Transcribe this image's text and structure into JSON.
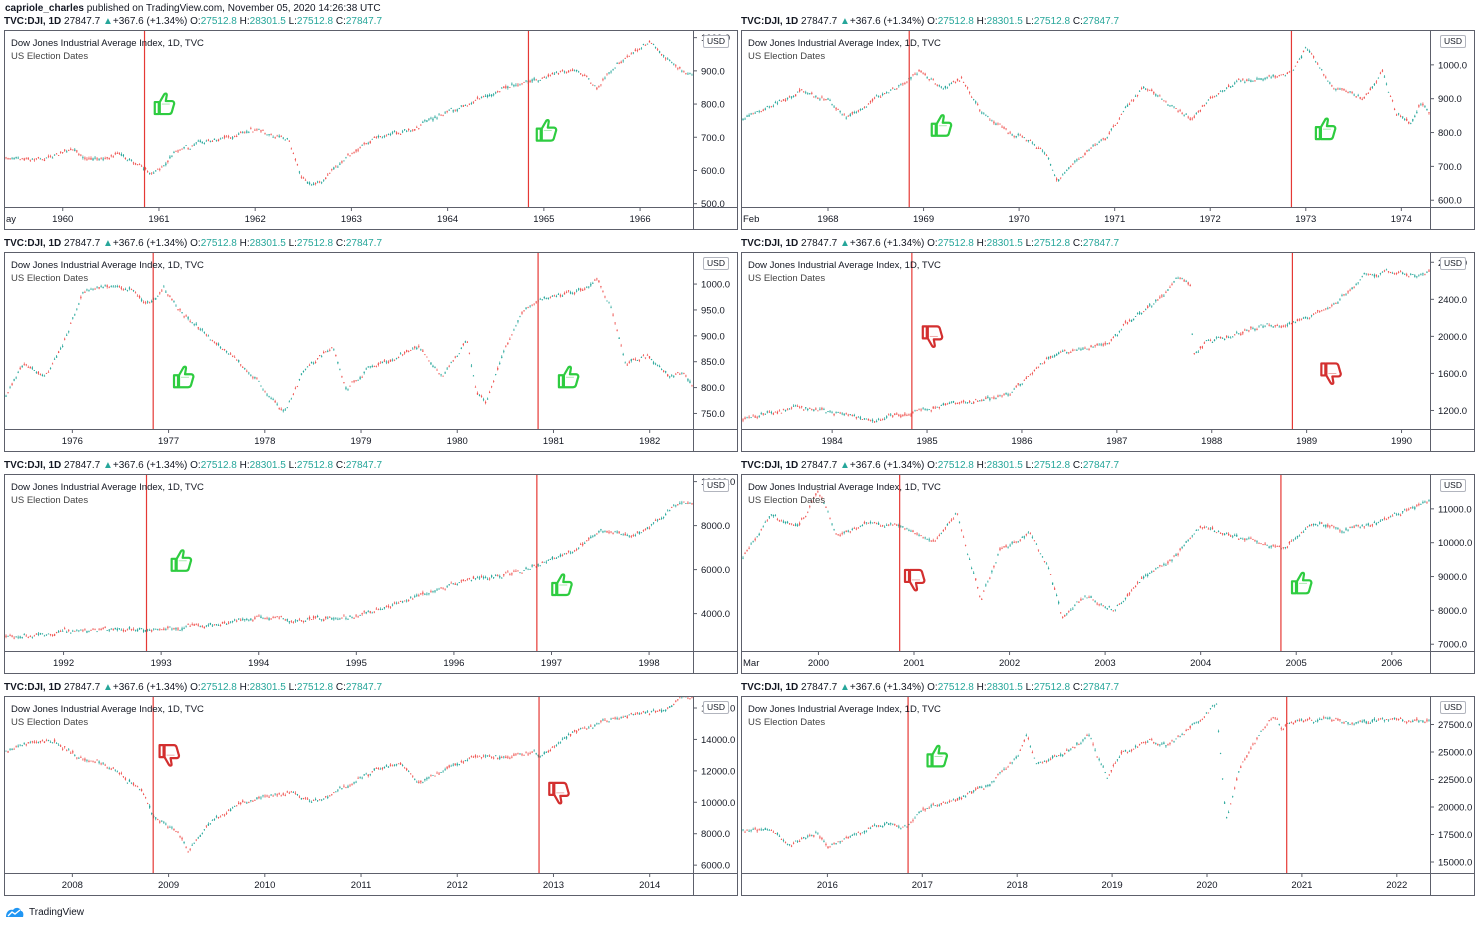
{
  "publisher": {
    "author": "capriole_charles",
    "text": "published on TradingView.com, November 05, 2020 14:26:38 UTC"
  },
  "ticker": {
    "symbol": "TVC:DJI, 1D",
    "last": "27847.7",
    "arrow": "▲",
    "change": "+367.6 (+1.34%)",
    "o_label": "O:",
    "o": "27512.8",
    "h_label": "H:",
    "h": "28301.5",
    "l_label": "L:",
    "l": "27512.8",
    "c_label": "C:",
    "c": "27847.7"
  },
  "legend": {
    "title": "Dow Jones Industrial Average Index, 1D, TVC",
    "subtitle": "US Election Dates"
  },
  "currency": "USD",
  "footer": {
    "brand": "TradingView"
  },
  "colors": {
    "candle_up": "#26a69a",
    "candle_down": "#ef5350",
    "election_line": "#e53935",
    "thumb_up": "#2ecc40",
    "thumb_down": "#d32f2f"
  },
  "chart_data": [
    {
      "type": "candlestick",
      "x_start_label": "ay",
      "x_ticks": [
        "1960",
        "1961",
        "1962",
        "1963",
        "1964",
        "1965",
        "1966"
      ],
      "x_range": [
        1959.4,
        1966.55
      ],
      "y_ticks": [
        "1000.0",
        "900.0",
        "800.0",
        "700.0",
        "600.0",
        "500.0"
      ],
      "ylim": [
        490,
        1020
      ],
      "series": [
        [
          1959.4,
          640
        ],
        [
          1959.8,
          635
        ],
        [
          1960.1,
          660
        ],
        [
          1960.3,
          630
        ],
        [
          1960.6,
          650
        ],
        [
          1960.8,
          610
        ],
        [
          1960.95,
          590
        ],
        [
          1961.2,
          660
        ],
        [
          1961.5,
          690
        ],
        [
          1961.8,
          700
        ],
        [
          1961.95,
          725
        ],
        [
          1962.2,
          705
        ],
        [
          1962.35,
          690
        ],
        [
          1962.48,
          580
        ],
        [
          1962.6,
          560
        ],
        [
          1962.75,
          580
        ],
        [
          1962.9,
          630
        ],
        [
          1963.1,
          670
        ],
        [
          1963.3,
          705
        ],
        [
          1963.6,
          720
        ],
        [
          1963.85,
          755
        ],
        [
          1964.1,
          785
        ],
        [
          1964.4,
          825
        ],
        [
          1964.7,
          860
        ],
        [
          1964.95,
          875
        ],
        [
          1965.2,
          900
        ],
        [
          1965.4,
          895
        ],
        [
          1965.55,
          850
        ],
        [
          1965.75,
          920
        ],
        [
          1965.95,
          960
        ],
        [
          1966.1,
          990
        ],
        [
          1966.25,
          945
        ],
        [
          1966.35,
          920
        ],
        [
          1966.5,
          885
        ]
      ],
      "elections": [
        1960.85,
        1964.84
      ],
      "signals": [
        {
          "x": 1961.05,
          "y": 800,
          "kind": "up"
        },
        {
          "x": 1965.02,
          "y": 720,
          "kind": "up"
        }
      ]
    },
    {
      "type": "candlestick",
      "x_start_label": "Feb",
      "x_ticks": [
        "1968",
        "1969",
        "1970",
        "1971",
        "1972",
        "1973",
        "1974"
      ],
      "x_range": [
        1967.1,
        1974.3
      ],
      "y_ticks": [
        "1000.0",
        "900.0",
        "800.0",
        "700.0",
        "600.0"
      ],
      "ylim": [
        580,
        1100
      ],
      "series": [
        [
          1967.1,
          840
        ],
        [
          1967.4,
          880
        ],
        [
          1967.7,
          920
        ],
        [
          1968.0,
          900
        ],
        [
          1968.2,
          840
        ],
        [
          1968.5,
          900
        ],
        [
          1968.8,
          950
        ],
        [
          1968.95,
          980
        ],
        [
          1969.2,
          930
        ],
        [
          1969.4,
          960
        ],
        [
          1969.6,
          860
        ],
        [
          1969.9,
          800
        ],
        [
          1970.1,
          780
        ],
        [
          1970.3,
          730
        ],
        [
          1970.4,
          650
        ],
        [
          1970.6,
          720
        ],
        [
          1970.9,
          780
        ],
        [
          1971.1,
          860
        ],
        [
          1971.3,
          940
        ],
        [
          1971.6,
          880
        ],
        [
          1971.8,
          840
        ],
        [
          1972.0,
          900
        ],
        [
          1972.3,
          950
        ],
        [
          1972.6,
          960
        ],
        [
          1972.85,
          980
        ],
        [
          1973.0,
          1050
        ],
        [
          1973.1,
          1010
        ],
        [
          1973.3,
          930
        ],
        [
          1973.6,
          900
        ],
        [
          1973.8,
          980
        ],
        [
          1973.95,
          850
        ],
        [
          1974.1,
          830
        ],
        [
          1974.2,
          890
        ],
        [
          1974.3,
          860
        ]
      ],
      "elections": [
        1968.85,
        1972.85
      ],
      "signals": [
        {
          "x": 1969.18,
          "y": 820,
          "kind": "up"
        },
        {
          "x": 1973.2,
          "y": 810,
          "kind": "up"
        }
      ]
    },
    {
      "type": "candlestick",
      "x_start_label": "",
      "x_ticks": [
        "1976",
        "1977",
        "1978",
        "1979",
        "1980",
        "1981",
        "1982"
      ],
      "x_range": [
        1975.3,
        1982.45
      ],
      "y_ticks": [
        "1000.0",
        "950.0",
        "900.0",
        "850.0",
        "800.0",
        "750.0"
      ],
      "ylim": [
        720,
        1060
      ],
      "series": [
        [
          1975.3,
          780
        ],
        [
          1975.5,
          850
        ],
        [
          1975.7,
          820
        ],
        [
          1975.9,
          880
        ],
        [
          1976.1,
          980
        ],
        [
          1976.3,
          1000
        ],
        [
          1976.6,
          990
        ],
        [
          1976.8,
          960
        ],
        [
          1976.95,
          990
        ],
        [
          1977.1,
          950
        ],
        [
          1977.3,
          920
        ],
        [
          1977.6,
          870
        ],
        [
          1977.9,
          820
        ],
        [
          1978.1,
          770
        ],
        [
          1978.2,
          750
        ],
        [
          1978.4,
          830
        ],
        [
          1978.7,
          880
        ],
        [
          1978.85,
          800
        ],
        [
          1979.1,
          840
        ],
        [
          1979.3,
          850
        ],
        [
          1979.6,
          880
        ],
        [
          1979.85,
          820
        ],
        [
          1980.1,
          890
        ],
        [
          1980.2,
          790
        ],
        [
          1980.3,
          770
        ],
        [
          1980.5,
          880
        ],
        [
          1980.7,
          950
        ],
        [
          1980.85,
          970
        ],
        [
          1981.1,
          980
        ],
        [
          1981.3,
          990
        ],
        [
          1981.45,
          1010
        ],
        [
          1981.6,
          950
        ],
        [
          1981.75,
          850
        ],
        [
          1982.0,
          860
        ],
        [
          1982.2,
          820
        ],
        [
          1982.35,
          830
        ],
        [
          1982.45,
          800
        ]
      ],
      "elections": [
        1976.84,
        1980.84
      ],
      "signals": [
        {
          "x": 1977.15,
          "y": 820,
          "kind": "up"
        },
        {
          "x": 1981.15,
          "y": 820,
          "kind": "up"
        }
      ]
    },
    {
      "type": "candlestick",
      "x_start_label": "",
      "x_ticks": [
        "1984",
        "1985",
        "1986",
        "1987",
        "1988",
        "1989",
        "1990"
      ],
      "x_range": [
        1983.05,
        1990.3
      ],
      "y_ticks": [
        "2800.0",
        "2400.0",
        "2000.0",
        "1600.0",
        "1200.0"
      ],
      "ylim": [
        1000,
        2900
      ],
      "series": [
        [
          1983.05,
          1100
        ],
        [
          1983.3,
          1170
        ],
        [
          1983.6,
          1220
        ],
        [
          1983.9,
          1200
        ],
        [
          1984.2,
          1140
        ],
        [
          1984.5,
          1100
        ],
        [
          1984.8,
          1180
        ],
        [
          1985.0,
          1220
        ],
        [
          1985.3,
          1280
        ],
        [
          1985.6,
          1310
        ],
        [
          1985.9,
          1400
        ],
        [
          1986.1,
          1600
        ],
        [
          1986.3,
          1800
        ],
        [
          1986.6,
          1850
        ],
        [
          1986.9,
          1920
        ],
        [
          1987.1,
          2150
        ],
        [
          1987.4,
          2350
        ],
        [
          1987.65,
          2640
        ],
        [
          1987.78,
          2550
        ],
        [
          1987.8,
          1800
        ],
        [
          1987.95,
          1950
        ],
        [
          1988.2,
          2000
        ],
        [
          1988.5,
          2100
        ],
        [
          1988.8,
          2130
        ],
        [
          1989.0,
          2180
        ],
        [
          1989.3,
          2350
        ],
        [
          1989.6,
          2650
        ],
        [
          1989.85,
          2700
        ],
        [
          1990.0,
          2700
        ],
        [
          1990.15,
          2640
        ],
        [
          1990.3,
          2720
        ]
      ],
      "elections": [
        1984.84,
        1988.85
      ],
      "signals": [
        {
          "x": 1985.05,
          "y": 2000,
          "kind": "down"
        },
        {
          "x": 1989.25,
          "y": 1600,
          "kind": "down"
        }
      ]
    },
    {
      "type": "candlestick",
      "x_start_label": "",
      "x_ticks": [
        "1992",
        "1993",
        "1994",
        "1995",
        "1996",
        "1997",
        "1998"
      ],
      "x_range": [
        1991.4,
        1998.45
      ],
      "y_ticks": [
        "10000.0",
        "8000.0",
        "6000.0",
        "4000.0"
      ],
      "ylim": [
        2300,
        10300
      ],
      "series": [
        [
          1991.4,
          2950
        ],
        [
          1991.7,
          3000
        ],
        [
          1992.0,
          3200
        ],
        [
          1992.5,
          3300
        ],
        [
          1992.85,
          3250
        ],
        [
          1993.2,
          3400
        ],
        [
          1993.7,
          3600
        ],
        [
          1994.0,
          3850
        ],
        [
          1994.3,
          3700
        ],
        [
          1994.7,
          3800
        ],
        [
          1995.0,
          3900
        ],
        [
          1995.5,
          4600
        ],
        [
          1995.9,
          5200
        ],
        [
          1996.2,
          5600
        ],
        [
          1996.5,
          5700
        ],
        [
          1996.85,
          6200
        ],
        [
          1997.2,
          6800
        ],
        [
          1997.5,
          7800
        ],
        [
          1997.8,
          7500
        ],
        [
          1998.0,
          7900
        ],
        [
          1998.3,
          9000
        ],
        [
          1998.45,
          8900
        ]
      ],
      "elections": [
        1992.85,
        1996.85
      ],
      "signals": [
        {
          "x": 1993.2,
          "y": 6400,
          "kind": "up"
        },
        {
          "x": 1997.1,
          "y": 5300,
          "kind": "up"
        }
      ]
    },
    {
      "type": "candlestick",
      "x_start_label": "Mar",
      "x_ticks": [
        "2000",
        "2001",
        "2002",
        "2003",
        "2004",
        "2005",
        "2006"
      ],
      "x_range": [
        1999.2,
        2006.4
      ],
      "y_ticks": [
        "11000.0",
        "10000.0",
        "9000.0",
        "8000.0",
        "7000.0"
      ],
      "ylim": [
        6800,
        12000
      ],
      "series": [
        [
          1999.2,
          9500
        ],
        [
          1999.5,
          10800
        ],
        [
          1999.8,
          10500
        ],
        [
          2000.0,
          11500
        ],
        [
          2000.2,
          10200
        ],
        [
          2000.5,
          10600
        ],
        [
          2000.85,
          10500
        ],
        [
          2001.2,
          10000
        ],
        [
          2001.45,
          10900
        ],
        [
          2001.7,
          8300
        ],
        [
          2001.9,
          9800
        ],
        [
          2002.2,
          10300
        ],
        [
          2002.4,
          9300
        ],
        [
          2002.55,
          7800
        ],
        [
          2002.8,
          8400
        ],
        [
          2003.1,
          8000
        ],
        [
          2003.4,
          9000
        ],
        [
          2003.7,
          9500
        ],
        [
          2004.0,
          10500
        ],
        [
          2004.3,
          10200
        ],
        [
          2004.6,
          10000
        ],
        [
          2004.85,
          9800
        ],
        [
          2005.2,
          10600
        ],
        [
          2005.5,
          10400
        ],
        [
          2005.8,
          10500
        ],
        [
          2006.1,
          10900
        ],
        [
          2006.4,
          11300
        ]
      ],
      "elections": [
        2000.85,
        2004.84
      ],
      "signals": [
        {
          "x": 2001.0,
          "y": 8900,
          "kind": "down"
        },
        {
          "x": 2005.05,
          "y": 8800,
          "kind": "up"
        }
      ]
    },
    {
      "type": "candlestick",
      "x_start_label": "",
      "x_ticks": [
        "2008",
        "2009",
        "2010",
        "2011",
        "2012",
        "2013",
        "2014"
      ],
      "x_range": [
        2007.3,
        2014.45
      ],
      "y_ticks": [
        "16000.0",
        "14000.0",
        "12000.0",
        "10000.0",
        "8000.0",
        "6000.0"
      ],
      "ylim": [
        5500,
        16700
      ],
      "series": [
        [
          2007.3,
          13200
        ],
        [
          2007.6,
          13800
        ],
        [
          2007.8,
          13900
        ],
        [
          2008.1,
          12800
        ],
        [
          2008.4,
          12300
        ],
        [
          2008.6,
          11300
        ],
        [
          2008.75,
          10500
        ],
        [
          2008.85,
          9000
        ],
        [
          2009.1,
          8200
        ],
        [
          2009.2,
          6800
        ],
        [
          2009.4,
          8500
        ],
        [
          2009.7,
          9700
        ],
        [
          2010.0,
          10400
        ],
        [
          2010.3,
          10600
        ],
        [
          2010.4,
          10100
        ],
        [
          2010.6,
          10200
        ],
        [
          2010.9,
          11200
        ],
        [
          2011.2,
          12200
        ],
        [
          2011.4,
          12500
        ],
        [
          2011.6,
          11200
        ],
        [
          2011.9,
          12100
        ],
        [
          2012.2,
          13000
        ],
        [
          2012.5,
          12800
        ],
        [
          2012.8,
          13200
        ],
        [
          2012.85,
          12800
        ],
        [
          2013.2,
          14400
        ],
        [
          2013.5,
          15100
        ],
        [
          2013.8,
          15600
        ],
        [
          2014.1,
          15800
        ],
        [
          2014.3,
          16500
        ],
        [
          2014.45,
          16700
        ]
      ],
      "elections": [
        2008.84,
        2012.85
      ],
      "signals": [
        {
          "x": 2009.0,
          "y": 13000,
          "kind": "down"
        },
        {
          "x": 2013.05,
          "y": 10600,
          "kind": "down"
        }
      ]
    },
    {
      "type": "candlestick",
      "x_start_label": "",
      "x_ticks": [
        "2016",
        "2017",
        "2018",
        "2019",
        "2020",
        "2021",
        "2022"
      ],
      "x_range": [
        2015.1,
        2022.35
      ],
      "y_ticks": [
        "27500.0",
        "25000.0",
        "22500.0",
        "20000.0",
        "17500.0",
        "15000.0"
      ],
      "ylim": [
        14000,
        30000
      ],
      "series": [
        [
          2015.1,
          17800
        ],
        [
          2015.4,
          18000
        ],
        [
          2015.6,
          16400
        ],
        [
          2015.9,
          17600
        ],
        [
          2016.0,
          16200
        ],
        [
          2016.3,
          17700
        ],
        [
          2016.6,
          18400
        ],
        [
          2016.85,
          18200
        ],
        [
          2017.0,
          19800
        ],
        [
          2017.4,
          20800
        ],
        [
          2017.7,
          22000
        ],
        [
          2018.0,
          24500
        ],
        [
          2018.1,
          26500
        ],
        [
          2018.2,
          24000
        ],
        [
          2018.5,
          24800
        ],
        [
          2018.75,
          26500
        ],
        [
          2018.95,
          22500
        ],
        [
          2019.1,
          25000
        ],
        [
          2019.4,
          26000
        ],
        [
          2019.6,
          25500
        ],
        [
          2019.9,
          27800
        ],
        [
          2020.1,
          29300
        ],
        [
          2020.15,
          24000
        ],
        [
          2020.2,
          18600
        ],
        [
          2020.35,
          23500
        ],
        [
          2020.55,
          26500
        ],
        [
          2020.7,
          28200
        ],
        [
          2020.8,
          27000
        ],
        [
          2020.85,
          27800
        ]
      ],
      "elections": [
        2016.85,
        2020.84
      ],
      "signals": [
        {
          "x": 2017.15,
          "y": 24600,
          "kind": "up"
        }
      ]
    }
  ]
}
